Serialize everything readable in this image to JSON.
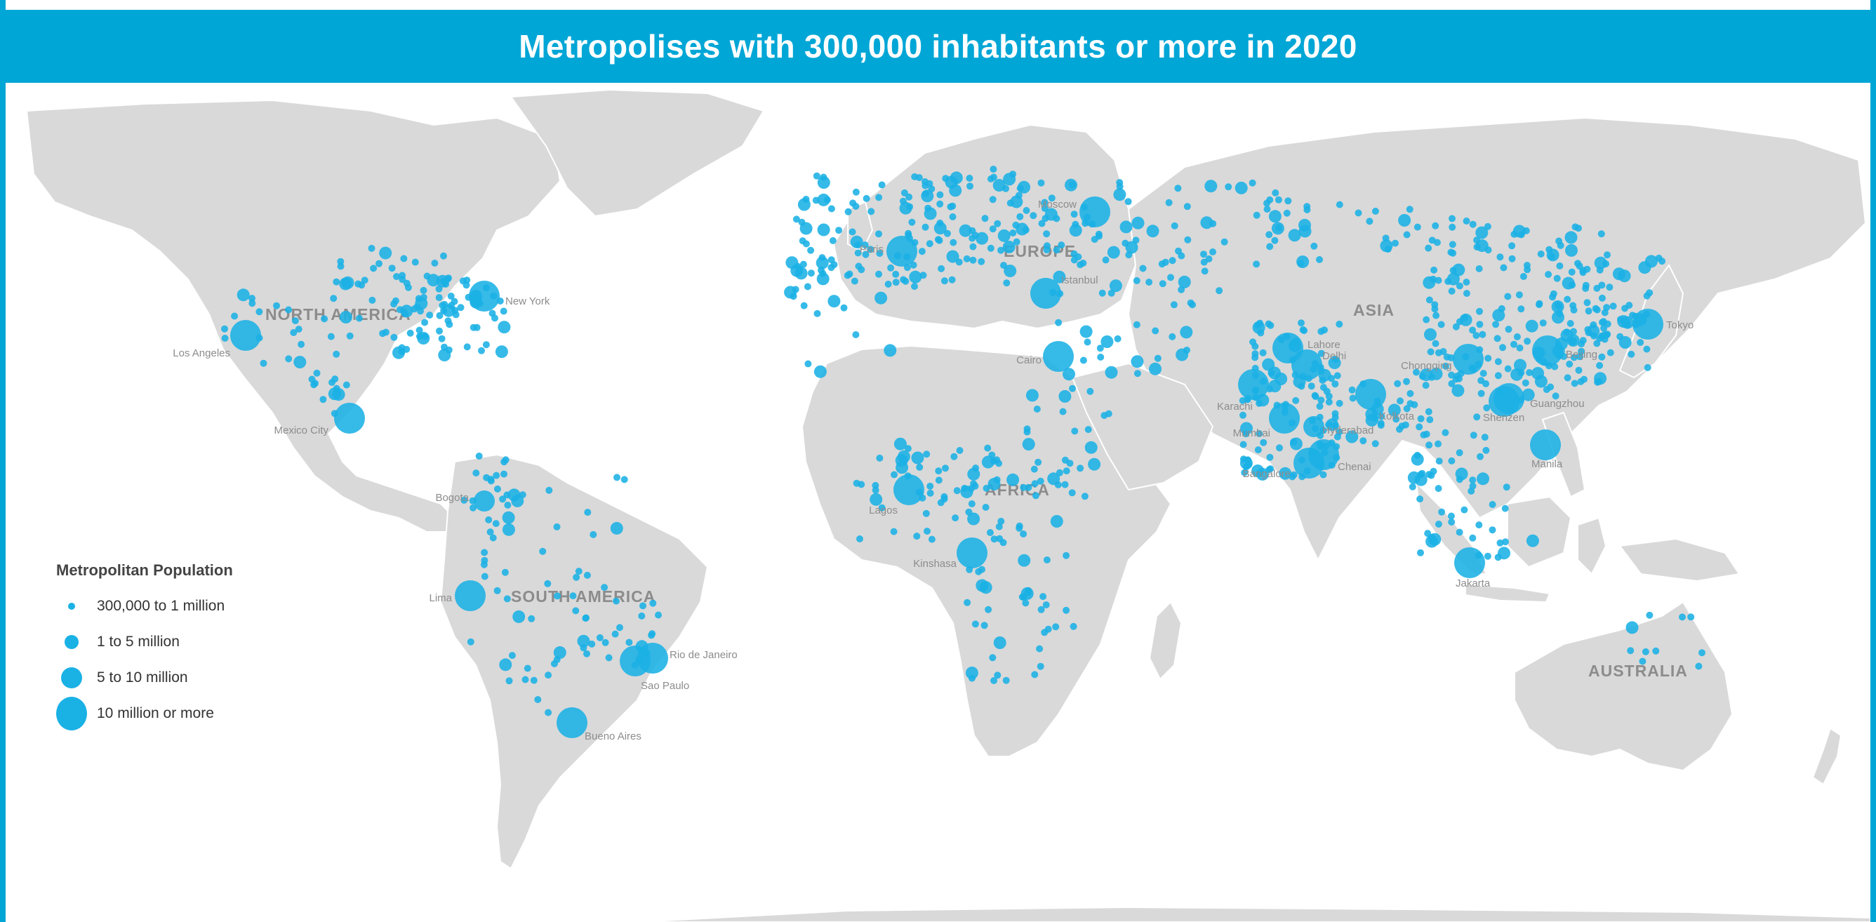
{
  "title": "Metropolises with 300,000 inhabitants or more in 2020",
  "colors": {
    "header": "#00a6d6",
    "city_dot": "#1ab1e5",
    "land": "#d9d9d9"
  },
  "regions": [
    "NORTH AMERICA",
    "SOUTH AMERICA",
    "EUROPE",
    "AFRICA",
    "ASIA",
    "AUSTRALIA"
  ],
  "cities": [
    {
      "name": "Los Angeles",
      "class": 3
    },
    {
      "name": "New York",
      "class": 3
    },
    {
      "name": "Mexico City",
      "class": 3
    },
    {
      "name": "Bogota",
      "class": 2
    },
    {
      "name": "Lima",
      "class": 3
    },
    {
      "name": "Sao Paulo",
      "class": 3
    },
    {
      "name": "Rio de Janeiro",
      "class": 3
    },
    {
      "name": "Bueno Aires",
      "class": 3
    },
    {
      "name": "Paris",
      "class": 3
    },
    {
      "name": "Moscow",
      "class": 3
    },
    {
      "name": "Istanbul",
      "class": 3
    },
    {
      "name": "Cairo",
      "class": 3
    },
    {
      "name": "Lagos",
      "class": 3
    },
    {
      "name": "Kinshasa",
      "class": 3
    },
    {
      "name": "Lahore",
      "class": 3
    },
    {
      "name": "Delhi",
      "class": 3
    },
    {
      "name": "Karachi",
      "class": 3
    },
    {
      "name": "Mumbai",
      "class": 3
    },
    {
      "name": "Hyderabad",
      "class": 2
    },
    {
      "name": "Bangalore",
      "class": 3
    },
    {
      "name": "Chenai",
      "class": 3
    },
    {
      "name": "Kolkota",
      "class": 3
    },
    {
      "name": "Chongqing",
      "class": 3
    },
    {
      "name": "Beijing",
      "class": 3
    },
    {
      "name": "Tokyo",
      "class": 3
    },
    {
      "name": "Shenzen",
      "class": 3
    },
    {
      "name": "Guangzhou",
      "class": 3
    },
    {
      "name": "Manila",
      "class": 3
    },
    {
      "name": "Jakarta",
      "class": 3
    }
  ],
  "legend": {
    "title": "Metropolitan Population",
    "items": [
      {
        "label": "300,000 to 1 million",
        "class": 0
      },
      {
        "label": "1 to 5 million",
        "class": 1
      },
      {
        "label": "5 to 10 million",
        "class": 2
      },
      {
        "label": "10 million or more",
        "class": 3
      }
    ]
  }
}
